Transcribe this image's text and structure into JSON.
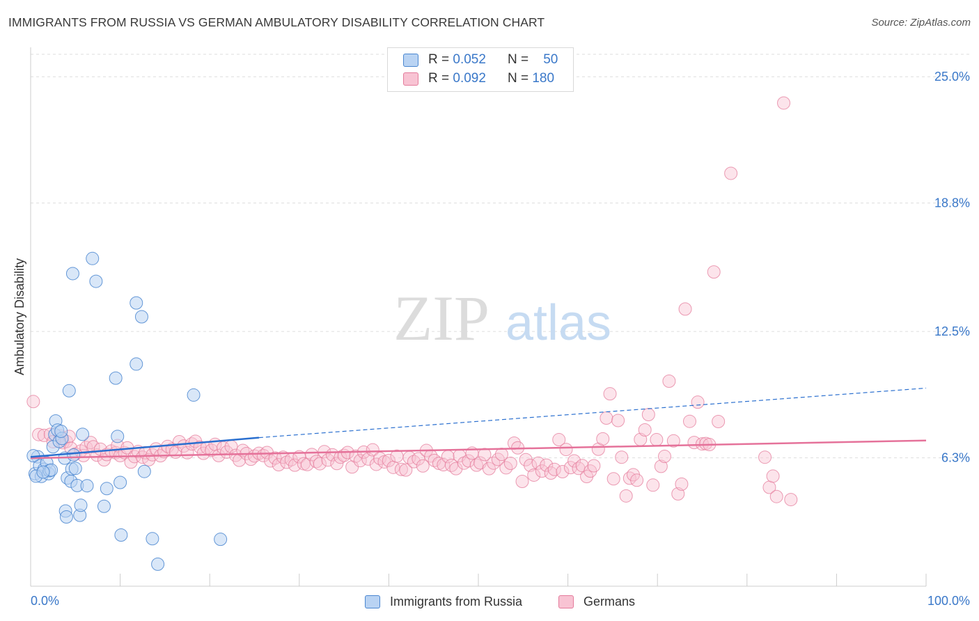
{
  "title": "IMMIGRANTS FROM RUSSIA VS GERMAN AMBULATORY DISABILITY CORRELATION CHART",
  "source": "Source: ZipAtlas.com",
  "watermark": {
    "zip": "ZIP",
    "atlas": "atlas"
  },
  "legend": {
    "rows": [
      {
        "r_label": "R =",
        "r_value": "0.052",
        "n_label": "N =",
        "n_value": "50"
      },
      {
        "r_label": "R =",
        "r_value": "0.092",
        "n_label": "N =",
        "n_value": "180"
      }
    ]
  },
  "colors": {
    "russia_fill": "#b9d3f3",
    "russia_stroke": "#4a86d0",
    "russia_line": "#2a6fcf",
    "german_fill": "#f8c3d3",
    "german_stroke": "#e47b9b",
    "german_line": "#e5729a",
    "axis_label_blue": "#3a78c9",
    "grid": "#dddddd"
  },
  "chart_data": {
    "type": "scatter",
    "title": "IMMIGRANTS FROM RUSSIA VS GERMAN AMBULATORY DISABILITY CORRELATION CHART",
    "xlabel": "",
    "ylabel": "Ambulatory Disability",
    "x_tick_labels": [
      "0.0%",
      "100.0%"
    ],
    "y_tick_labels": [
      "25.0%",
      "18.8%",
      "12.5%",
      "6.3%"
    ],
    "y_ticks": [
      25.0,
      18.8,
      12.5,
      6.3
    ],
    "xlim": [
      0,
      100
    ],
    "ylim": [
      0,
      26.1
    ],
    "grid": "horizontal dashed",
    "legend_placement": "top-center",
    "series": [
      {
        "name": "Immigrants from Russia",
        "r": 0.052,
        "n": 50,
        "trend": {
          "x": [
            0,
            25.5
          ],
          "y": [
            6.34,
            7.29
          ],
          "extended_to": [
            100,
            9.72
          ]
        },
        "points": [
          [
            0.5,
            5.52
          ],
          [
            0.8,
            6.35
          ],
          [
            1.0,
            5.92
          ],
          [
            1.2,
            5.39
          ],
          [
            1.5,
            5.74
          ],
          [
            1.8,
            6.05
          ],
          [
            2.0,
            5.52
          ],
          [
            2.1,
            5.67
          ],
          [
            2.3,
            5.7
          ],
          [
            2.5,
            6.84
          ],
          [
            2.7,
            7.44
          ],
          [
            2.8,
            8.11
          ],
          [
            3.0,
            7.66
          ],
          [
            3.2,
            7.1
          ],
          [
            3.5,
            7.25
          ],
          [
            3.8,
            6.28
          ],
          [
            3.9,
            3.69
          ],
          [
            4.0,
            3.4
          ],
          [
            4.1,
            5.31
          ],
          [
            4.3,
            9.59
          ],
          [
            4.5,
            5.15
          ],
          [
            4.6,
            5.75
          ],
          [
            4.7,
            15.34
          ],
          [
            4.8,
            6.44
          ],
          [
            5.0,
            5.78
          ],
          [
            5.2,
            4.94
          ],
          [
            5.5,
            3.48
          ],
          [
            5.6,
            3.97
          ],
          [
            5.8,
            7.45
          ],
          [
            6.3,
            4.93
          ],
          [
            6.9,
            16.08
          ],
          [
            7.3,
            14.96
          ],
          [
            8.2,
            3.92
          ],
          [
            8.5,
            4.79
          ],
          [
            9.5,
            10.21
          ],
          [
            9.7,
            7.35
          ],
          [
            10.0,
            5.09
          ],
          [
            10.1,
            2.51
          ],
          [
            11.8,
            13.9
          ],
          [
            11.8,
            10.9
          ],
          [
            12.4,
            13.22
          ],
          [
            12.7,
            5.63
          ],
          [
            13.6,
            2.33
          ],
          [
            14.2,
            1.08
          ],
          [
            18.2,
            9.38
          ],
          [
            21.2,
            2.3
          ],
          [
            0.3,
            6.4
          ],
          [
            0.6,
            5.4
          ],
          [
            1.4,
            5.6
          ],
          [
            3.4,
            7.6
          ]
        ]
      },
      {
        "name": "Germans",
        "r": 0.092,
        "n": 180,
        "trend": {
          "x": [
            0,
            100
          ],
          "y": [
            6.28,
            7.15
          ]
        },
        "points": [
          [
            0.3,
            9.06
          ],
          [
            0.9,
            7.44
          ],
          [
            1.5,
            7.4
          ],
          [
            2.2,
            7.45
          ],
          [
            2.5,
            7.09
          ],
          [
            3.3,
            7.38
          ],
          [
            3.6,
            7.04
          ],
          [
            4.0,
            7.1
          ],
          [
            4.3,
            7.35
          ],
          [
            4.5,
            6.77
          ],
          [
            5.0,
            6.49
          ],
          [
            5.6,
            6.63
          ],
          [
            5.9,
            6.41
          ],
          [
            6.2,
            6.81
          ],
          [
            6.7,
            7.05
          ],
          [
            7.0,
            6.84
          ],
          [
            7.4,
            6.43
          ],
          [
            7.8,
            6.72
          ],
          [
            8.2,
            6.2
          ],
          [
            8.5,
            6.46
          ],
          [
            9.0,
            6.63
          ],
          [
            9.5,
            6.55
          ],
          [
            9.7,
            6.9
          ],
          [
            10.0,
            6.41
          ],
          [
            10.5,
            6.55
          ],
          [
            10.8,
            6.79
          ],
          [
            11.2,
            6.09
          ],
          [
            11.6,
            6.36
          ],
          [
            12.0,
            6.61
          ],
          [
            12.5,
            6.33
          ],
          [
            12.8,
            6.55
          ],
          [
            13.2,
            6.21
          ],
          [
            13.6,
            6.45
          ],
          [
            14.0,
            6.74
          ],
          [
            14.5,
            6.4
          ],
          [
            14.9,
            6.6
          ],
          [
            15.3,
            6.86
          ],
          [
            15.8,
            6.72
          ],
          [
            16.2,
            6.58
          ],
          [
            16.6,
            7.09
          ],
          [
            17.1,
            6.88
          ],
          [
            17.5,
            6.55
          ],
          [
            18.0,
            6.98
          ],
          [
            18.4,
            7.11
          ],
          [
            18.9,
            6.83
          ],
          [
            19.3,
            6.52
          ],
          [
            19.7,
            6.8
          ],
          [
            20.2,
            6.67
          ],
          [
            20.6,
            6.96
          ],
          [
            21.0,
            6.41
          ],
          [
            21.5,
            6.79
          ],
          [
            21.9,
            6.58
          ],
          [
            22.4,
            6.85
          ],
          [
            22.9,
            6.42
          ],
          [
            23.3,
            6.18
          ],
          [
            23.7,
            6.66
          ],
          [
            24.1,
            6.51
          ],
          [
            24.6,
            6.23
          ],
          [
            25.0,
            6.39
          ],
          [
            25.5,
            6.52
          ],
          [
            26.0,
            6.41
          ],
          [
            26.4,
            6.56
          ],
          [
            26.8,
            6.15
          ],
          [
            27.3,
            6.29
          ],
          [
            27.7,
            5.96
          ],
          [
            28.2,
            6.33
          ],
          [
            28.6,
            6.08
          ],
          [
            29.1,
            6.21
          ],
          [
            29.5,
            5.94
          ],
          [
            30.0,
            6.35
          ],
          [
            30.5,
            6.01
          ],
          [
            30.9,
            5.97
          ],
          [
            31.4,
            6.46
          ],
          [
            31.9,
            6.12
          ],
          [
            32.3,
            6.01
          ],
          [
            32.8,
            6.6
          ],
          [
            33.2,
            6.19
          ],
          [
            33.7,
            6.45
          ],
          [
            34.2,
            6.02
          ],
          [
            34.6,
            6.33
          ],
          [
            35.0,
            6.42
          ],
          [
            35.4,
            6.56
          ],
          [
            35.9,
            5.85
          ],
          [
            36.3,
            6.38
          ],
          [
            36.8,
            6.16
          ],
          [
            37.2,
            6.58
          ],
          [
            37.7,
            6.24
          ],
          [
            38.2,
            6.69
          ],
          [
            38.6,
            5.98
          ],
          [
            39.0,
            6.27
          ],
          [
            39.5,
            6.1
          ],
          [
            40.0,
            6.17
          ],
          [
            40.5,
            5.83
          ],
          [
            40.9,
            6.38
          ],
          [
            41.4,
            5.73
          ],
          [
            41.9,
            5.7
          ],
          [
            42.3,
            6.31
          ],
          [
            42.8,
            6.11
          ],
          [
            43.3,
            6.25
          ],
          [
            43.8,
            5.9
          ],
          [
            44.2,
            6.66
          ],
          [
            44.7,
            6.39
          ],
          [
            45.1,
            6.17
          ],
          [
            45.6,
            6.03
          ],
          [
            46.1,
            5.96
          ],
          [
            46.6,
            6.36
          ],
          [
            47.0,
            5.93
          ],
          [
            47.5,
            5.77
          ],
          [
            47.9,
            6.4
          ],
          [
            48.4,
            6.04
          ],
          [
            48.9,
            6.15
          ],
          [
            49.3,
            6.53
          ],
          [
            49.8,
            5.94
          ],
          [
            50.2,
            6.05
          ],
          [
            50.7,
            6.46
          ],
          [
            51.2,
            5.77
          ],
          [
            51.7,
            6.04
          ],
          [
            52.2,
            6.22
          ],
          [
            52.6,
            6.47
          ],
          [
            53.1,
            5.81
          ],
          [
            53.6,
            6.03
          ],
          [
            54.0,
            7.02
          ],
          [
            54.4,
            6.79
          ],
          [
            54.9,
            5.14
          ],
          [
            55.3,
            6.21
          ],
          [
            55.8,
            5.93
          ],
          [
            56.2,
            5.45
          ],
          [
            56.7,
            6.04
          ],
          [
            57.1,
            5.65
          ],
          [
            57.6,
            5.94
          ],
          [
            58.1,
            5.55
          ],
          [
            58.5,
            5.73
          ],
          [
            59.0,
            7.19
          ],
          [
            59.4,
            5.62
          ],
          [
            59.8,
            6.71
          ],
          [
            60.3,
            5.82
          ],
          [
            60.7,
            6.15
          ],
          [
            61.2,
            5.78
          ],
          [
            61.6,
            5.92
          ],
          [
            62.1,
            5.38
          ],
          [
            62.5,
            5.65
          ],
          [
            62.9,
            5.91
          ],
          [
            63.4,
            6.72
          ],
          [
            63.9,
            7.23
          ],
          [
            64.3,
            8.25
          ],
          [
            64.7,
            9.44
          ],
          [
            65.1,
            5.27
          ],
          [
            65.6,
            8.13
          ],
          [
            66.0,
            6.33
          ],
          [
            66.5,
            4.43
          ],
          [
            66.9,
            5.3
          ],
          [
            67.3,
            5.47
          ],
          [
            67.7,
            5.2
          ],
          [
            68.1,
            7.2
          ],
          [
            68.6,
            7.67
          ],
          [
            69.0,
            8.42
          ],
          [
            69.5,
            4.96
          ],
          [
            69.9,
            7.19
          ],
          [
            70.4,
            5.88
          ],
          [
            70.8,
            6.37
          ],
          [
            71.3,
            10.06
          ],
          [
            71.8,
            7.13
          ],
          [
            72.3,
            4.53
          ],
          [
            72.7,
            5.01
          ],
          [
            73.1,
            13.6
          ],
          [
            73.6,
            8.09
          ],
          [
            74.1,
            7.05
          ],
          [
            74.5,
            9.03
          ],
          [
            75.0,
            6.98
          ],
          [
            75.4,
            7.0
          ],
          [
            75.8,
            6.95
          ],
          [
            76.3,
            15.42
          ],
          [
            76.8,
            8.08
          ],
          [
            78.2,
            20.26
          ],
          [
            82.0,
            6.33
          ],
          [
            82.5,
            4.85
          ],
          [
            82.9,
            5.4
          ],
          [
            83.3,
            4.4
          ],
          [
            84.1,
            23.71
          ],
          [
            84.9,
            4.25
          ]
        ]
      }
    ]
  },
  "axis": {
    "ylabel": "Ambulatory Disability",
    "x_min_label": "0.0%",
    "x_max_label": "100.0%"
  },
  "bottom_legend": {
    "russia": "Immigrants from Russia",
    "germans": "Germans"
  }
}
